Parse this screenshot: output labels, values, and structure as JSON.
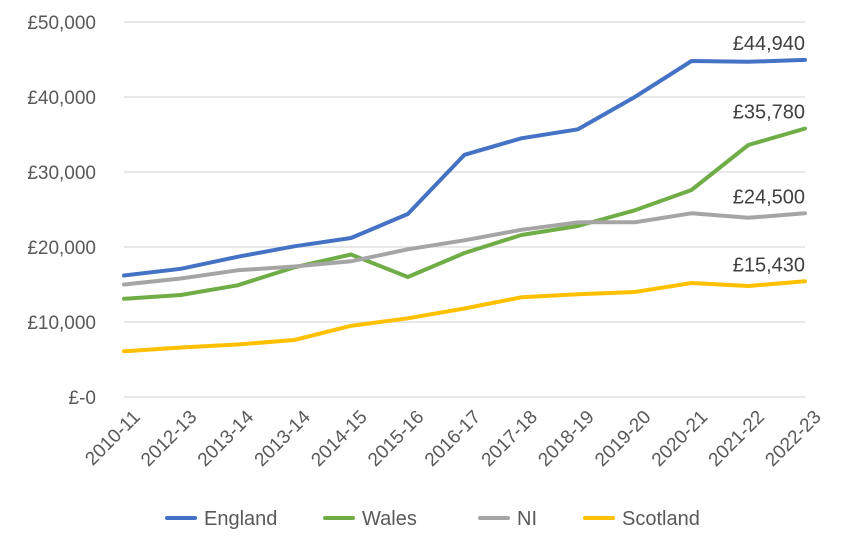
{
  "chart_data": {
    "type": "line",
    "title": "",
    "xlabel": "",
    "ylabel": "",
    "categories": [
      "2010-11",
      "2012-13",
      "2013-14",
      "2013-14",
      "2014-15",
      "2015-16",
      "2016-17",
      "2017-18",
      "2018-19",
      "2019-20",
      "2020-21",
      "2021-22",
      "2022-23"
    ],
    "y_tick_labels": [
      "£-0",
      "£10,000",
      "£20,000",
      "£30,000",
      "£40,000",
      "£50,000"
    ],
    "y_ticks": [
      0,
      10000,
      20000,
      30000,
      40000,
      50000
    ],
    "ylim": [
      0,
      50000
    ],
    "grid": true,
    "legend_position": "bottom",
    "series": [
      {
        "name": "England",
        "color": "#4472C4",
        "values": [
          16200,
          17100,
          18700,
          20100,
          21200,
          24400,
          32300,
          34500,
          35700,
          40000,
          44800,
          44700,
          44940
        ],
        "end_label": "£44,940"
      },
      {
        "name": "Wales",
        "color": "#70AD47",
        "values": [
          13100,
          13600,
          14900,
          17300,
          19000,
          16000,
          19200,
          21600,
          22800,
          24900,
          27600,
          33600,
          35780
        ],
        "end_label": "£35,780"
      },
      {
        "name": "NI",
        "color": "#A5A5A5",
        "values": [
          15000,
          15800,
          16900,
          17400,
          18100,
          19700,
          20900,
          22300,
          23300,
          23300,
          24500,
          23900,
          24500
        ],
        "end_label": "£24,500"
      },
      {
        "name": "Scotland",
        "color": "#FFC000",
        "values": [
          6100,
          6600,
          7000,
          7600,
          9500,
          10500,
          11800,
          13300,
          13700,
          14000,
          15200,
          14800,
          15430
        ],
        "end_label": "£15,430"
      }
    ]
  }
}
